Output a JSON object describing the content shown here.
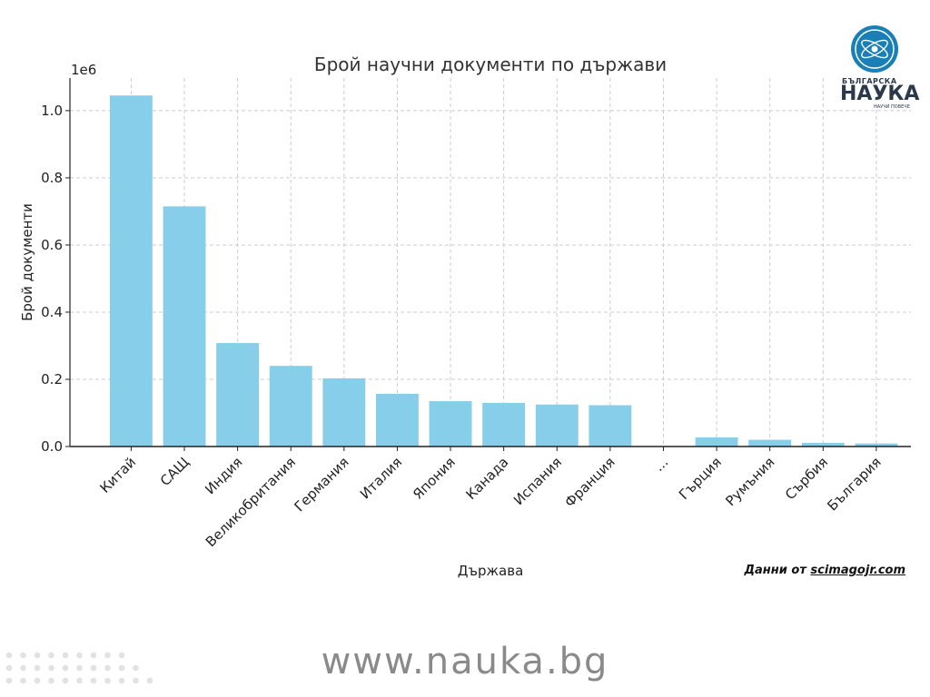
{
  "chart_data": {
    "type": "bar",
    "title": "Брой научни документи по държави",
    "xlabel": "Държава",
    "ylabel": "Брой документи",
    "y_offset_label": "1e6",
    "categories": [
      "Китай",
      "САЩ",
      "Индия",
      "Великобритания",
      "Германия",
      "Италия",
      "Япония",
      "Канада",
      "Испания",
      "Франция",
      "...",
      "Гърция",
      "Румъния",
      "Сърбия",
      "България"
    ],
    "values": [
      1045000,
      715000,
      308000,
      240000,
      203000,
      157000,
      135000,
      130000,
      125000,
      123000,
      0,
      27000,
      20000,
      11000,
      9000
    ],
    "yticks": [
      0,
      200000,
      400000,
      600000,
      800000,
      1000000
    ],
    "ytick_labels": [
      "0.0",
      "0.2",
      "0.4",
      "0.6",
      "0.8",
      "1.0"
    ],
    "ylim": [
      0,
      1097000
    ],
    "grid": true,
    "bar_color": "#87ceeb"
  },
  "logo": {
    "line1": "БЪЛГАРСКА",
    "line2": "НАУКА",
    "tagline": "НАУЧИ ПОВЕЧЕ",
    "color": "#1a7fb5"
  },
  "source": {
    "prefix": "Данни от ",
    "link": "scimagojr.com"
  },
  "footer": {
    "url": "www.nauka.bg"
  }
}
